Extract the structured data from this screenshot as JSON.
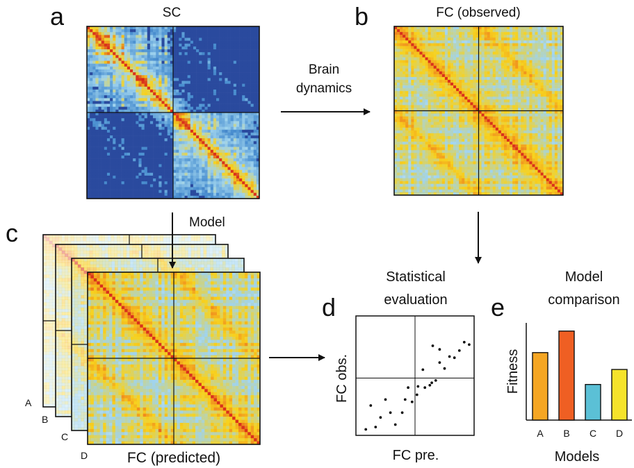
{
  "panels": {
    "a": {
      "letter": "a",
      "title": "SC"
    },
    "b": {
      "letter": "b",
      "title": "FC (observed)"
    },
    "c": {
      "letter": "c",
      "title": "FC (predicted)",
      "stack_labels": [
        "A",
        "B",
        "C",
        "D"
      ]
    },
    "d": {
      "letter": "d",
      "title_line1": "Statistical",
      "title_line2": "evaluation",
      "xlabel": "FC pre.",
      "ylabel": "FC obs."
    },
    "e": {
      "letter": "e",
      "title_line1": "Model",
      "title_line2": "comparison",
      "xlabel": "Models",
      "ylabel": "Fitness"
    }
  },
  "arrows": {
    "sc_to_fc_line1": "Brain",
    "sc_to_fc_line2": "dynamics",
    "model": "Model"
  },
  "colors": {
    "sc_low": "#2a4a9e",
    "fc_low": "#e8f4fb",
    "heat_mid": "#f7d21e",
    "heat_high": "#d6261b",
    "bar_A": "#f5a623",
    "bar_B": "#ef5f23",
    "bar_C": "#5bc0d6",
    "bar_D": "#f5e32b"
  },
  "chart_data": [
    {
      "type": "scatter",
      "xlabel": "FC pre.",
      "ylabel": "FC obs.",
      "x": [
        1.0,
        2.0,
        4.0,
        2.5,
        3.5,
        4.7,
        1.5,
        3.0,
        5.0,
        5.7,
        5.3,
        6.3,
        7.0,
        7.5,
        6.2,
        6.8,
        7.7,
        8.1,
        8.5,
        9.0,
        9.5,
        10.0,
        10.5,
        11.0,
        11.5,
        7.8,
        8.5
      ],
      "y": [
        0.5,
        0.7,
        0.9,
        1.5,
        1.9,
        1.9,
        2.5,
        3.0,
        3.0,
        2.8,
        4.0,
        4.1,
        4.0,
        4.2,
        3.4,
        5.5,
        4.4,
        4.6,
        6.1,
        5.6,
        6.6,
        6.5,
        7.1,
        7.8,
        7.6,
        7.5,
        7.2
      ],
      "xlim": [
        0,
        12
      ],
      "ylim": [
        0,
        10
      ],
      "grid": false
    },
    {
      "type": "bar",
      "categories": [
        "A",
        "B",
        "C",
        "D"
      ],
      "values": [
        0.72,
        0.95,
        0.38,
        0.54
      ],
      "xlabel": "Models",
      "ylabel": "Fitness",
      "ylim": [
        0,
        1
      ]
    }
  ]
}
